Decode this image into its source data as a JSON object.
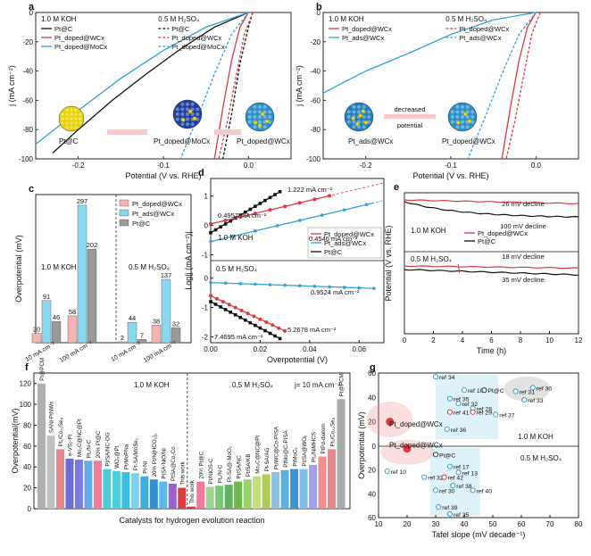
{
  "colors": {
    "pt": "#111111",
    "wc": "#e0393e",
    "moc": "#2fa3da",
    "ads": "#2fa3da",
    "cyan": "#8ad7ef",
    "gray": "#9a9a9a",
    "light_pink": "#f5b4b4",
    "light_blue": "#b9e4f5"
  },
  "panels": {
    "a": {
      "label": "a",
      "xlabel": "Potential (V vs. RHE)",
      "ylabel": "j (mA cm⁻²)",
      "legend_left_title": "1.0 M KOH",
      "legend_right_title": "0.5 M H₂SO₄",
      "legend": [
        {
          "label": "Pt@C",
          "color": "pt",
          "key": "pt"
        },
        {
          "label": "Pt_doped@WCx",
          "color": "wc",
          "key": "wc"
        },
        {
          "label": "Pt_doped@MoCx",
          "color": "moc",
          "key": "moc"
        }
      ],
      "labels": {
        "ptc": "Pt@C",
        "moc": "Pt_doped@MoCx",
        "wc": "Pt_doped@WCx"
      }
    },
    "b": {
      "label": "b",
      "xlabel": "Potential (V vs. RHE)",
      "ylabel": "j (mA cm⁻²)",
      "legend_left_title": "1.0 M KOH",
      "legend_right_title": "0.5 M H₂SO₄",
      "legend": [
        {
          "label": "Pt_doped@WCx",
          "color": "wc",
          "key": "wc"
        },
        {
          "label": "Pt_ads@WCx",
          "color": "ads",
          "key": "ads"
        }
      ],
      "labels": {
        "ads": "Pt_ads@WCx",
        "doped": "Pt_doped@WCx",
        "arrow": "decreased potential"
      }
    },
    "c": {
      "label": "c",
      "ylabel": "Overpotential (mV)",
      "cond_left": "1.0 M KOH",
      "cond_right": "0.5 M H₂SO₄",
      "legend": [
        {
          "label": "Pt_doped@WCx",
          "color": "light_pink"
        },
        {
          "label": "Pt_ads@WCx",
          "color": "cyan"
        },
        {
          "label": "Pt@C",
          "color": "gray"
        }
      ]
    },
    "d": {
      "label": "d",
      "xlabel": "Overpotential (V)",
      "ylabel": "Log|j (mA cm⁻²)|",
      "cond_top": "1.0 M KOH",
      "cond_bottom": "0.5 M H₂SO₄",
      "legend": [
        {
          "label": "Pt_doped@WCx",
          "color": "wc"
        },
        {
          "label": "Pt_ads@WCx",
          "color": "ads"
        },
        {
          "label": "Pt@C",
          "color": "pt"
        }
      ],
      "annotations": [
        {
          "text": "0.4957 mA cm⁻²",
          "color": "pt"
        },
        {
          "text": "1.222 mA cm⁻²",
          "color": "wc"
        },
        {
          "text": "0.4546 mA cm⁻²",
          "color": "ads"
        },
        {
          "text": "0.9524 mA cm⁻²",
          "color": "ads"
        },
        {
          "text": "5.2678 mA cm⁻²",
          "color": "pt"
        },
        {
          "text": "7.4695 mA cm⁻²",
          "color": "wc"
        }
      ]
    },
    "e": {
      "label": "e",
      "xlabel": "Time (h)",
      "ylabel": "Potential (V vs. RHE)",
      "cond_top": "1.0 M KOH",
      "cond_bottom": "0.5 M H₂SO₄",
      "legend": [
        {
          "label": "Pt_doped@WCx",
          "color": "wc"
        },
        {
          "label": "Pt@C",
          "color": "pt"
        }
      ],
      "notes": [
        "26 mV decline",
        "100 mV decline",
        "18 mV decline",
        "35 mV decline"
      ]
    },
    "f": {
      "label": "f",
      "xlabel": "Catalysts for hydrogen evolution reaction",
      "ylabel": "Overpotential(mV)",
      "cond_left": "1.0 M KOH",
      "cond_right": "0.5 M H₂SO₄",
      "j_note": "j= 10 mA cm⁻²",
      "this_work": "This work"
    },
    "g": {
      "label": "g",
      "xlabel": "Tafel slope (mV decade⁻¹)",
      "ylabel": "Overpotential (mV)",
      "cond_top": "1.0 M KOH",
      "cond_bottom": "0.5 M H₂SO₄",
      "ptc": "Pt@C",
      "wc": "Pt_doped@WCx"
    }
  },
  "chart_data": [
    {
      "panel": "a",
      "type": "line",
      "title": "",
      "xlabel": "Potential (V vs. RHE)",
      "ylabel": "j (mA cm⁻²)",
      "xlim": [
        -0.25,
        0.05
      ],
      "ylim": [
        -100,
        0
      ],
      "xticks": [
        -0.2,
        -0.1,
        0.0
      ],
      "yticks": [
        0,
        -20,
        -40,
        -60,
        -80,
        -100
      ],
      "series": [
        {
          "name": "Pt@C (1.0 M KOH)",
          "color": "pt",
          "dash": false,
          "x": [
            0.0,
            -0.04,
            -0.08,
            -0.12,
            -0.16,
            -0.2,
            -0.23
          ],
          "y": [
            0,
            -10,
            -25,
            -42,
            -60,
            -80,
            -96
          ]
        },
        {
          "name": "Pt_doped@WCx (1.0 M KOH)",
          "color": "wc",
          "dash": false,
          "x": [
            0.0,
            -0.01,
            -0.02,
            -0.03,
            -0.04
          ],
          "y": [
            0,
            -10,
            -33,
            -65,
            -100
          ]
        },
        {
          "name": "Pt_doped@MoCx (1.0 M KOH)",
          "color": "moc",
          "dash": false,
          "x": [
            0.0,
            -0.05,
            -0.1,
            -0.15,
            -0.2,
            -0.25
          ],
          "y": [
            0,
            -10,
            -26,
            -45,
            -67,
            -90
          ]
        },
        {
          "name": "Pt@C (0.5 M H2SO4)",
          "color": "pt",
          "dash": true,
          "x": [
            0.005,
            0.0,
            -0.01,
            -0.02,
            -0.03
          ],
          "y": [
            0,
            -10,
            -35,
            -70,
            -100
          ]
        },
        {
          "name": "Pt_doped@WCx (0.5 M H2SO4)",
          "color": "wc",
          "dash": true,
          "x": [
            0.005,
            -0.005,
            -0.015,
            -0.025,
            -0.035
          ],
          "y": [
            0,
            -15,
            -45,
            -75,
            -100
          ]
        },
        {
          "name": "Pt_doped@MoCx (0.5 M H2SO4)",
          "color": "moc",
          "dash": true,
          "x": [
            0.0,
            -0.02,
            -0.04,
            -0.06,
            -0.08
          ],
          "y": [
            0,
            -15,
            -42,
            -72,
            -100
          ]
        }
      ]
    },
    {
      "panel": "b",
      "type": "line",
      "title": "",
      "xlabel": "Potential (V vs. RHE)",
      "ylabel": "j (mA cm⁻²)",
      "xlim": [
        -0.25,
        0.05
      ],
      "ylim": [
        -100,
        0
      ],
      "xticks": [
        -0.2,
        -0.1,
        0.0
      ],
      "yticks": [
        0,
        -20,
        -40,
        -60,
        -80,
        -100
      ],
      "series": [
        {
          "name": "Pt_doped@WCx (1.0 M KOH)",
          "color": "wc",
          "dash": false,
          "x": [
            0.0,
            -0.01,
            -0.02,
            -0.03,
            -0.04
          ],
          "y": [
            0,
            -10,
            -33,
            -65,
            -100
          ]
        },
        {
          "name": "Pt_ads@WCx (1.0 M KOH)",
          "color": "ads",
          "dash": false,
          "x": [
            0.0,
            -0.05,
            -0.1,
            -0.15,
            -0.2,
            -0.25
          ],
          "y": [
            0,
            -5,
            -15,
            -28,
            -40,
            -55
          ]
        },
        {
          "name": "Pt_doped@WCx (0.5 M H2SO4)",
          "color": "wc",
          "dash": true,
          "x": [
            0.005,
            -0.005,
            -0.015,
            -0.025,
            -0.035
          ],
          "y": [
            0,
            -15,
            -45,
            -75,
            -100
          ]
        },
        {
          "name": "Pt_ads@WCx (0.5 M H2SO4)",
          "color": "ads",
          "dash": true,
          "x": [
            0.0,
            -0.02,
            -0.04,
            -0.06,
            -0.08
          ],
          "y": [
            0,
            -15,
            -42,
            -72,
            -100
          ]
        }
      ]
    },
    {
      "panel": "c",
      "type": "bar",
      "ylabel": "Overpotential (mV)",
      "ylim": [
        0,
        320
      ],
      "groups": [
        "10 mA cm⁻²",
        "100 mA cm⁻²",
        "10 mA cm⁻²",
        "100 mA cm⁻²"
      ],
      "series": [
        {
          "name": "Pt_doped@WCx",
          "color": "light_pink",
          "values": [
            20,
            58,
            2,
            38
          ]
        },
        {
          "name": "Pt_ads@WCx",
          "color": "cyan",
          "values": [
            91,
            297,
            44,
            137
          ]
        },
        {
          "name": "Pt@C",
          "color": "gray",
          "values": [
            46,
            202,
            7,
            32
          ]
        }
      ]
    },
    {
      "panel": "d",
      "type": "line",
      "xlabel": "Overpotential (V)",
      "ylabel": "Log|j (mA cm⁻²)|",
      "xlim": [
        0,
        0.07
      ],
      "ylim": [
        -2.2,
        1.6
      ],
      "xticks": [
        0.0,
        0.02,
        0.04,
        0.06
      ],
      "yticks": [
        1,
        0,
        -1,
        -2
      ]
    },
    {
      "panel": "e",
      "type": "line",
      "xlabel": "Time (h)",
      "ylabel": "Potential (V vs. RHE)",
      "xlim": [
        0,
        12
      ],
      "xticks": [
        0,
        2,
        4,
        6,
        8,
        10,
        12
      ],
      "series": [
        {
          "name": "Pt_doped@WCx (1.0 M KOH)",
          "color": "wc",
          "x": [
            0,
            12
          ],
          "y": [
            0,
            -26
          ]
        },
        {
          "name": "Pt@C (1.0 M KOH)",
          "color": "pt",
          "x": [
            0,
            4,
            8,
            12
          ],
          "y": [
            0,
            -60,
            -85,
            -100
          ]
        },
        {
          "name": "Pt_doped@WCx (0.5 M H2SO4)",
          "color": "wc",
          "x": [
            0,
            12
          ],
          "y": [
            0,
            -18
          ]
        },
        {
          "name": "Pt@C (0.5 M H2SO4)",
          "color": "pt",
          "x": [
            0,
            12
          ],
          "y": [
            0,
            -35
          ]
        }
      ]
    },
    {
      "panel": "f",
      "type": "bar",
      "ylabel": "Overpotential(mV)",
      "yticks": [
        0,
        20,
        40,
        60,
        80,
        100,
        120
      ],
      "categories": [
        {
          "label": "Pt@PCM",
          "value": 120,
          "color": "#b0b0b0",
          "side": "KOH"
        },
        {
          "label": "SANi-PtNWs",
          "value": 70,
          "color": "#c0c0c0",
          "side": "KOH"
        },
        {
          "label": "Pt₁/Co₂₂Se₈",
          "value": 57,
          "color": "#e8868b",
          "side": "KOH"
        },
        {
          "label": "e-VS₂-Pt",
          "value": 48,
          "color": "#6c6cd6",
          "side": "KOH"
        },
        {
          "label": "Mo₂C@NC@Pt",
          "value": 47,
          "color": "#7a7adf",
          "side": "KOH"
        },
        {
          "label": "Pt₁/N-C",
          "value": 46,
          "color": "#6aa9e8",
          "side": "KOH"
        },
        {
          "label": "20% Pt@C",
          "value": 46,
          "color": "#f07a9a",
          "side": "KOH"
        },
        {
          "label": "Pt/SA/NC-OG",
          "value": 38,
          "color": "#4ecbd6",
          "side": "KOH"
        },
        {
          "label": "WO₃@Pt",
          "value": 36,
          "color": "#4dcfe0",
          "side": "KOH"
        },
        {
          "label": "Pt/MoPNa",
          "value": 35,
          "color": "#3bbfe0",
          "side": "KOH"
        },
        {
          "label": "Pt-SA/MoSe₂",
          "value": 34,
          "color": "#7ad3ea",
          "side": "KOH"
        },
        {
          "label": "Pt-Ni",
          "value": 31,
          "color": "#3caedb",
          "side": "KOH"
        },
        {
          "label": "20% Pt/N(HCO₃)₂",
          "value": 28,
          "color": "#2f8fd0",
          "side": "KOH"
        },
        {
          "label": "PtSA-NiO/Ni",
          "value": 26,
          "color": "#5bb8e8",
          "side": "KOH"
        },
        {
          "label": "PtSA@Co₂Co",
          "value": 24,
          "color": "#9a62d0",
          "side": "KOH"
        },
        {
          "label": "This work (KOH)",
          "value": 20,
          "color": "#e0393e",
          "side": "KOH"
        },
        {
          "label": "20% Pt@C",
          "value": 26,
          "color": "#f07a9a",
          "side": "H2SO4"
        },
        {
          "label": "Pt/NiOS-C",
          "value": 21,
          "color": "#9cd58e",
          "side": "H2SO4"
        },
        {
          "label": "Pt₁/N-C",
          "value": 22,
          "color": "#76c878",
          "side": "H2SO4"
        },
        {
          "label": "Pt-SA@-MoO₂",
          "value": 23,
          "color": "#5fb25f",
          "side": "H2SO4"
        },
        {
          "label": "Pt/SA/NC",
          "value": 26,
          "color": "#6bb84a",
          "side": "H2SO4"
        },
        {
          "label": "Pt/SA/KB",
          "value": 28,
          "color": "#9ad36a",
          "side": "H2SO4"
        },
        {
          "label": "Mo₂C@NC@Pt",
          "value": 31,
          "color": "#c4e07a",
          "side": "H2SO4"
        },
        {
          "label": "Pt-SA/AG",
          "value": 33,
          "color": "#b0cc57",
          "side": "H2SO4"
        },
        {
          "label": "Pt/WC@Co-PISA",
          "value": 35,
          "color": "#8fc0e0",
          "side": "H2SO4"
        },
        {
          "label": "PtMo@C-PISA",
          "value": 37,
          "color": "#5ab0e0",
          "side": "H2SO4"
        },
        {
          "label": "PtMoCₓ",
          "value": 38,
          "color": "#3b94d0",
          "side": "H2SO4"
        },
        {
          "label": "Pt/SA@WOₓ",
          "value": 38,
          "color": "#7dbde8",
          "side": "H2SO4"
        },
        {
          "label": "Pt₁/NiMHCS",
          "value": 42,
          "color": "#a0a0e8",
          "side": "H2SO4"
        },
        {
          "label": "PtPd-diatom",
          "value": 50,
          "color": "#f08f8f",
          "side": "H2SO4"
        },
        {
          "label": "Pt₁/Co₂₂Se₈",
          "value": 57,
          "color": "#e8868b",
          "side": "H2SO4"
        },
        {
          "label": "Pt@PCM",
          "value": 105,
          "color": "#a9a9a9",
          "side": "H2SO4"
        },
        {
          "label": "This work (H2SO4)",
          "value": 2,
          "color": "#e0393e",
          "side": "H2SO4"
        }
      ]
    },
    {
      "panel": "g",
      "type": "scatter",
      "xlabel": "Tafel slope (mV decade⁻¹)",
      "ylabel": "Overpotential (mV)",
      "xlim": [
        10,
        80
      ],
      "xticks": [
        10,
        20,
        30,
        40,
        50,
        60,
        70,
        80
      ],
      "koh_points": [
        {
          "label": "ref 34",
          "x": 30,
          "y": 57
        },
        {
          "label": "ref 10",
          "x": 40,
          "y": 46
        },
        {
          "label": "Pt@C",
          "x": 47,
          "y": 46
        },
        {
          "label": "ref 30",
          "x": 64,
          "y": 48
        },
        {
          "label": "ref 35",
          "x": 35,
          "y": 39
        },
        {
          "label": "ref 31",
          "x": 58,
          "y": 45
        },
        {
          "label": "ref 33",
          "x": 61,
          "y": 38
        },
        {
          "label": "ref 32",
          "x": 38,
          "y": 35
        },
        {
          "label": "ref 28",
          "x": 43,
          "y": 31
        },
        {
          "label": "ref 41",
          "x": 35,
          "y": 28
        },
        {
          "label": "ref 29",
          "x": 43,
          "y": 28
        },
        {
          "label": "ref 37",
          "x": 51,
          "y": 26
        },
        {
          "label": "ref 36",
          "x": 34,
          "y": 14
        },
        {
          "label": "Pt_doped@WCx",
          "x": 14,
          "y": 20
        }
      ],
      "acid_points": [
        {
          "label": "Pt_doped@WCx",
          "x": 20,
          "y": 2
        },
        {
          "label": "Pt@C",
          "x": 30,
          "y": 7
        },
        {
          "label": "ref 10",
          "x": 13,
          "y": 21
        },
        {
          "label": "ref 17",
          "x": 35,
          "y": 17
        },
        {
          "label": "ref 13",
          "x": 38,
          "y": 22
        },
        {
          "label": "ref 32",
          "x": 26,
          "y": 26
        },
        {
          "label": "ref 42",
          "x": 33,
          "y": 26
        },
        {
          "label": "ref 38",
          "x": 36,
          "y": 33
        },
        {
          "label": "ref 40",
          "x": 43,
          "y": 37
        },
        {
          "label": "ref 30",
          "x": 30,
          "y": 37
        },
        {
          "label": "ref 39",
          "x": 31,
          "y": 51
        },
        {
          "label": "ref 35",
          "x": 35,
          "y": 57
        }
      ]
    }
  ]
}
